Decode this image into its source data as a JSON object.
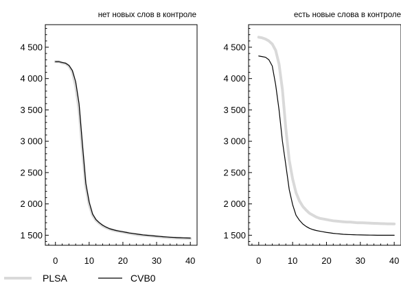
{
  "chart_data": [
    {
      "type": "line",
      "title": "нет новых слов в контроле",
      "xlabel": "",
      "ylabel": "",
      "xlim": [
        -3,
        42
      ],
      "ylim": [
        1340,
        4860
      ],
      "x_ticks": [
        0,
        10,
        20,
        30,
        40
      ],
      "x_tick_labels": [
        "0",
        "10",
        "20",
        "30",
        "40"
      ],
      "y_ticks": [
        1500,
        2000,
        2500,
        3000,
        3500,
        4000,
        4500
      ],
      "y_tick_labels": [
        "1 500",
        "2 000",
        "2 500",
        "3 000",
        "3 500",
        "4 000",
        "4 500"
      ],
      "grid": false,
      "x": [
        0,
        1,
        2,
        3,
        4,
        5,
        6,
        7,
        8,
        9,
        10,
        11,
        12,
        13,
        14,
        15,
        16,
        17,
        18,
        19,
        20,
        21,
        22,
        23,
        24,
        25,
        26,
        27,
        28,
        29,
        30,
        31,
        32,
        33,
        34,
        35,
        36,
        37,
        38,
        39,
        40
      ],
      "series": [
        {
          "name": "PLSA",
          "color": "#d9d9d9",
          "values": [
            4270,
            4270,
            4250,
            4240,
            4200,
            4110,
            3880,
            3500,
            2860,
            2280,
            1990,
            1820,
            1740,
            1690,
            1650,
            1620,
            1600,
            1580,
            1570,
            1560,
            1550,
            1540,
            1530,
            1520,
            1510,
            1505,
            1500,
            1495,
            1490,
            1485,
            1480,
            1475,
            1470,
            1465,
            1460,
            1458,
            1455,
            1453,
            1450,
            1448,
            1446
          ]
        },
        {
          "name": "CVB0",
          "color": "#000000",
          "values": [
            4270,
            4270,
            4255,
            4245,
            4210,
            4130,
            3950,
            3600,
            2950,
            2330,
            2030,
            1840,
            1750,
            1700,
            1660,
            1630,
            1605,
            1590,
            1575,
            1565,
            1555,
            1545,
            1535,
            1528,
            1520,
            1512,
            1505,
            1500,
            1495,
            1490,
            1485,
            1480,
            1475,
            1472,
            1468,
            1465,
            1462,
            1460,
            1458,
            1456,
            1455
          ]
        }
      ]
    },
    {
      "type": "line",
      "title": "есть новые слова в контроле",
      "xlabel": "",
      "ylabel": "",
      "xlim": [
        -3,
        42
      ],
      "ylim": [
        1340,
        4860
      ],
      "x_ticks": [
        0,
        10,
        20,
        30,
        40
      ],
      "x_tick_labels": [
        "0",
        "10",
        "20",
        "30",
        "40"
      ],
      "y_ticks": [
        1500,
        2000,
        2500,
        3000,
        3500,
        4000,
        4500
      ],
      "y_tick_labels": [
        "1 500",
        "2 000",
        "2 500",
        "3 000",
        "3 500",
        "4 000",
        "4 500"
      ],
      "grid": false,
      "x": [
        0,
        1,
        2,
        3,
        4,
        5,
        6,
        7,
        8,
        9,
        10,
        11,
        12,
        13,
        14,
        15,
        16,
        17,
        18,
        19,
        20,
        21,
        22,
        23,
        24,
        25,
        26,
        27,
        28,
        29,
        30,
        31,
        32,
        33,
        34,
        35,
        36,
        37,
        38,
        39,
        40
      ],
      "series": [
        {
          "name": "PLSA",
          "color": "#d9d9d9",
          "values": [
            4660,
            4650,
            4630,
            4600,
            4550,
            4450,
            4230,
            3820,
            3200,
            2700,
            2400,
            2180,
            2050,
            1960,
            1900,
            1850,
            1820,
            1790,
            1770,
            1760,
            1750,
            1740,
            1730,
            1725,
            1720,
            1715,
            1710,
            1710,
            1705,
            1700,
            1700,
            1698,
            1695,
            1693,
            1690,
            1688,
            1686,
            1684,
            1682,
            1681,
            1680
          ]
        },
        {
          "name": "CVB0",
          "color": "#000000",
          "values": [
            4360,
            4350,
            4340,
            4300,
            4200,
            3900,
            3500,
            3000,
            2620,
            2230,
            1990,
            1820,
            1740,
            1680,
            1640,
            1610,
            1590,
            1575,
            1565,
            1555,
            1545,
            1538,
            1530,
            1525,
            1520,
            1515,
            1512,
            1510,
            1508,
            1506,
            1505,
            1504,
            1503,
            1502,
            1501,
            1500,
            1500,
            1500,
            1500,
            1500,
            1500
          ]
        }
      ]
    }
  ],
  "legend": {
    "placement": "bottom-left",
    "entries": [
      {
        "name": "PLSA",
        "color": "#d9d9d9"
      },
      {
        "name": "CVB0",
        "color": "#000000"
      }
    ]
  }
}
